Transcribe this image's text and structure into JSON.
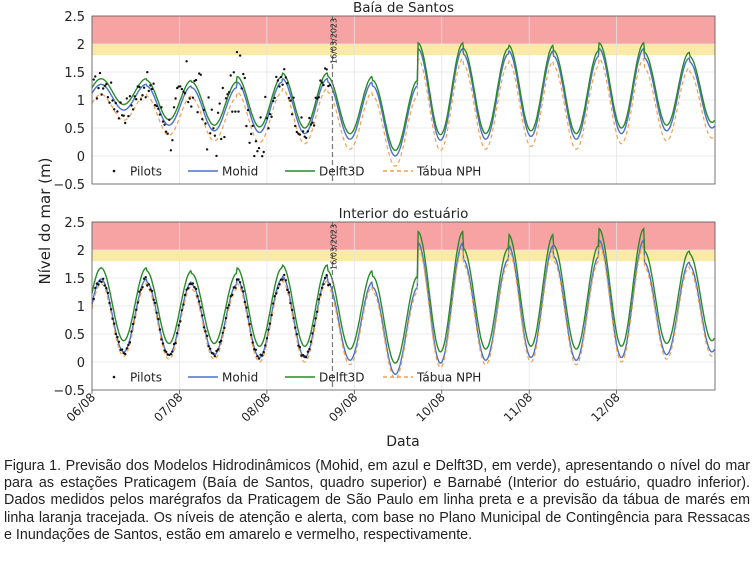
{
  "figure": {
    "ylabel": "Nível do mar (m)",
    "xlabel": "Data",
    "caption": "Figura 1. Previsão dos Modelos Hidrodinâmicos (Mohid, em azul e Delft3D, em verde), apresentando o nível do mar para as estações Praticagem (Baía de Santos, quadro superior) e Barnabé (Interior do estuário, quadro inferior). Dados medidos pelos marégrafos da Praticagem de São Paulo em linha preta e a previsão da tábua de marés em linha laranja tracejada. Os níveis de atenção e alerta, com base no Plano Municipal de Contingência para Ressacas e Inundações de Santos, estão em amarelo e vermelho, respectivamente.",
    "now_marker_text": "16/03/2023"
  },
  "colors": {
    "mohid": "#4c72c8",
    "delft3d": "#2a8a2a",
    "tabua": "#f0a050",
    "pilots": "#111111",
    "alert_red": "#f7a3a3",
    "attention_yellow": "#fbe9a7",
    "grid": "#e4e4e4"
  },
  "chart_data": [
    {
      "type": "line",
      "title": "Baía de Santos",
      "x": {
        "start": "06/08",
        "end": "13/08 03:00",
        "ticks": [
          "06/08",
          "07/08",
          "08/08",
          "09/08",
          "10/08",
          "11/08",
          "12/08"
        ]
      },
      "ylim": [
        -0.5,
        2.5
      ],
      "yticks": [
        "−0.5",
        "0",
        "0.5",
        "1",
        "1.5",
        "2",
        "2.5"
      ],
      "bands": [
        {
          "name": "atenção",
          "from": 1.8,
          "to": 2.0,
          "color": "attention_yellow"
        },
        {
          "name": "alerta",
          "from": 2.0,
          "to": 2.5,
          "color": "alert_red"
        }
      ],
      "now_marker_day": 2.75,
      "legend": {
        "placement": "bottom-left",
        "entries": [
          "Pilots",
          "Mohid",
          "Delft3D",
          "Tábua NPH"
        ]
      },
      "tide": {
        "period_hours": 12.42,
        "phase_hours": 2.5,
        "highs_m": [
          1.28,
          1.25,
          1.22,
          1.32,
          1.38,
          1.32,
          1.25,
          1.92,
          1.82,
          1.88,
          1.78,
          1.92,
          1.75,
          1.68,
          1.55,
          1.6,
          1.5,
          1.45
        ],
        "lows_m": [
          0.82,
          0.55,
          0.45,
          0.42,
          0.4,
          0.3,
          0.0,
          0.28,
          0.3,
          0.35,
          0.3,
          0.4,
          0.45,
          0.5,
          0.5,
          0.55,
          0.6,
          0.65
        ],
        "offsets_m": {
          "mohid": 0.0,
          "delft3d": 0.1,
          "tabua": -0.18
        },
        "pilots_noise_m": 0.25
      },
      "series": [
        {
          "name": "Pilots",
          "style": "points"
        },
        {
          "name": "Mohid",
          "style": "line"
        },
        {
          "name": "Delft3D",
          "style": "line"
        },
        {
          "name": "Tábua NPH",
          "style": "dashed"
        }
      ]
    },
    {
      "type": "line",
      "title": "Interior do estuário",
      "x": {
        "start": "06/08",
        "end": "13/08 03:00",
        "ticks": [
          "06/08",
          "07/08",
          "08/08",
          "09/08",
          "10/08",
          "11/08",
          "12/08"
        ]
      },
      "ylim": [
        -0.5,
        2.5
      ],
      "yticks": [
        "−0.5",
        "0",
        "0.5",
        "1",
        "1.5",
        "2",
        "2.5"
      ],
      "bands": [
        {
          "name": "atenção",
          "from": 1.8,
          "to": 2.0,
          "color": "attention_yellow"
        },
        {
          "name": "alerta",
          "from": 2.0,
          "to": 2.5,
          "color": "alert_red"
        }
      ],
      "now_marker_day": 2.75,
      "legend": {
        "placement": "bottom-left",
        "entries": [
          "Pilots",
          "Mohid",
          "Delft3D",
          "Tábua NPH"
        ]
      },
      "tide": {
        "period_hours": 12.42,
        "phase_hours": 2.5,
        "highs_m": [
          1.6,
          1.55,
          1.5,
          1.6,
          1.65,
          1.55,
          1.45,
          2.25,
          1.95,
          2.2,
          2.0,
          2.3,
          1.9,
          1.85,
          1.7,
          1.8,
          1.6,
          1.55
        ],
        "lows_m": [
          0.3,
          0.25,
          0.25,
          0.2,
          0.2,
          0.15,
          -0.1,
          0.1,
          0.15,
          0.2,
          0.15,
          0.2,
          0.25,
          0.3,
          0.3,
          0.35,
          0.4,
          0.45
        ],
        "offsets_m": {
          "mohid": -0.12,
          "delft3d": 0.08,
          "tabua": -0.2
        },
        "pilots_noise_m": 0.06
      },
      "series": [
        {
          "name": "Pilots",
          "style": "points"
        },
        {
          "name": "Mohid",
          "style": "line"
        },
        {
          "name": "Delft3D",
          "style": "line"
        },
        {
          "name": "Tábua NPH",
          "style": "dashed"
        }
      ]
    }
  ]
}
